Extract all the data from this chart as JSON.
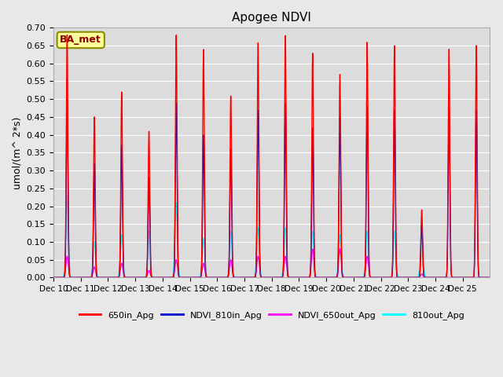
{
  "title": "Apogee NDVI",
  "ylabel": "umol/(m^ 2*s)",
  "annotation": "BA_met",
  "ylim": [
    0.0,
    0.7
  ],
  "yticks": [
    0.0,
    0.05,
    0.1,
    0.15,
    0.2,
    0.25,
    0.3,
    0.35,
    0.4,
    0.45,
    0.5,
    0.55,
    0.6,
    0.65,
    0.7
  ],
  "colors": {
    "650in_Apg": "#FF0000",
    "NDVI_810in_Apg": "#0000CC",
    "NDVI_650out_Apg": "#FF00FF",
    "810out_Apg": "#00FFFF"
  },
  "fig_facecolor": "#E8E8E8",
  "ax_facecolor": "#DCDCDC",
  "days": [
    "Dec 10",
    "Dec 11",
    "Dec 12",
    "Dec 13",
    "Dec 14",
    "Dec 15",
    "Dec 16",
    "Dec 17",
    "Dec 18",
    "Dec 19",
    "Dec 20",
    "Dec 21",
    "Dec 22",
    "Dec 23",
    "Dec 24",
    "Dec 25"
  ],
  "peak_650in": [
    0.68,
    0.45,
    0.52,
    0.41,
    0.68,
    0.64,
    0.51,
    0.66,
    0.68,
    0.63,
    0.57,
    0.66,
    0.65,
    0.19,
    0.64,
    0.65
  ],
  "peak_810in": [
    0.5,
    0.32,
    0.37,
    0.28,
    0.49,
    0.4,
    0.36,
    0.47,
    0.49,
    0.42,
    0.45,
    0.48,
    0.47,
    0.15,
    0.47,
    0.47
  ],
  "peak_650out": [
    0.06,
    0.03,
    0.04,
    0.02,
    0.05,
    0.04,
    0.05,
    0.06,
    0.06,
    0.08,
    0.08,
    0.06,
    0.0,
    0.01,
    0.0,
    0.0
  ],
  "peak_810out": [
    0.23,
    0.1,
    0.12,
    0.13,
    0.21,
    0.11,
    0.13,
    0.14,
    0.14,
    0.13,
    0.12,
    0.13,
    0.13,
    0.14,
    0.0,
    0.0
  ],
  "sigma_inner": 0.03,
  "sigma_outer": 0.045,
  "points_per_day": 200
}
